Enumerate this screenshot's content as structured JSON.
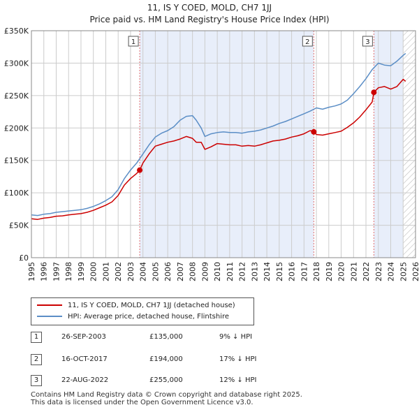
{
  "title_line1": "11, IS Y COED, MOLD, CH7 1JJ",
  "title_line2": "Price paid vs. HM Land Registry's House Price Index (HPI)",
  "legend": {
    "red_label": "11, IS Y COED, MOLD, CH7 1JJ (detached house)",
    "blue_label": "HPI: Average price, detached house, Flintshire"
  },
  "colors": {
    "red": "#cc0000",
    "blue": "#5b8ec6",
    "shade": "#e8eefa",
    "hatch": "#bbbbbb",
    "grid": "#cccccc",
    "marker": "#e07070"
  },
  "sales": [
    {
      "id": "1",
      "date": "26-SEP-2003",
      "price": "£135,000",
      "hpi": "9% ↓ HPI"
    },
    {
      "id": "2",
      "date": "16-OCT-2017",
      "price": "£194,000",
      "hpi": "17% ↓ HPI"
    },
    {
      "id": "3",
      "date": "22-AUG-2022",
      "price": "£255,000",
      "hpi": "12% ↓ HPI"
    }
  ],
  "footer": {
    "line1": "Contains HM Land Registry data © Crown copyright and database right 2025.",
    "line2": "This data is licensed under the Open Government Licence v3.0."
  },
  "chart_data": {
    "type": "line",
    "xlim": [
      1995,
      2026
    ],
    "ylim": [
      0,
      350000
    ],
    "y_ticks": [
      0,
      50000,
      100000,
      150000,
      200000,
      250000,
      300000,
      350000
    ],
    "y_tick_labels": [
      "£0",
      "£50K",
      "£100K",
      "£150K",
      "£200K",
      "£250K",
      "£300K",
      "£350K"
    ],
    "x_ticks": [
      1995,
      1996,
      1997,
      1998,
      1999,
      2000,
      2001,
      2002,
      2003,
      2004,
      2005,
      2006,
      2007,
      2008,
      2009,
      2010,
      2011,
      2012,
      2013,
      2014,
      2015,
      2016,
      2017,
      2018,
      2019,
      2020,
      2021,
      2022,
      2023,
      2024,
      2025,
      2026
    ],
    "x_tick_labels": [
      "1995",
      "1996",
      "1997",
      "1998",
      "1999",
      "2000",
      "2001",
      "2002",
      "2003",
      "2004",
      "2005",
      "2006",
      "2007",
      "2008",
      "2009",
      "2010",
      "2011",
      "2012",
      "2013",
      "2014",
      "2015",
      "2016",
      "2017",
      "2018",
      "2019",
      "2020",
      "2021",
      "2022",
      "2023",
      "2024",
      "2025",
      "2026"
    ],
    "shaded_ranges": [
      [
        2003.74,
        2017.79
      ],
      [
        2022.64,
        2025.0
      ]
    ],
    "hatch_from": 2025.0,
    "series": [
      {
        "name": "11, IS Y COED, MOLD, CH7 1JJ (detached house)",
        "color": "#cc0000",
        "x": [
          1995,
          1995.5,
          1996,
          1996.5,
          1997,
          1997.5,
          1998,
          1998.5,
          1999,
          1999.5,
          2000,
          2000.5,
          2001,
          2001.5,
          2002,
          2002.5,
          2003,
          2003.5,
          2003.74,
          2004,
          2004.5,
          2005,
          2005.5,
          2006,
          2006.5,
          2007,
          2007.5,
          2008,
          2008.3,
          2008.7,
          2009,
          2009.5,
          2010,
          2010.5,
          2011,
          2011.5,
          2012,
          2012.5,
          2013,
          2013.5,
          2014,
          2014.5,
          2015,
          2015.5,
          2016,
          2016.5,
          2017,
          2017.5,
          2017.79,
          2018,
          2018.5,
          2019,
          2019.5,
          2020,
          2020.5,
          2021,
          2021.5,
          2022,
          2022.5,
          2022.64,
          2023,
          2023.5,
          2024,
          2024.5,
          2025,
          2025.2
        ],
        "y": [
          60000,
          59000,
          61000,
          62000,
          64000,
          64500,
          66000,
          67000,
          68000,
          70000,
          73000,
          77000,
          81000,
          86000,
          96000,
          112000,
          122000,
          130000,
          135000,
          146000,
          160000,
          172000,
          175000,
          178000,
          180000,
          183000,
          187000,
          184000,
          178000,
          178000,
          167000,
          171000,
          176000,
          175000,
          174000,
          174000,
          172000,
          173000,
          172000,
          174000,
          177000,
          180000,
          181000,
          183000,
          186000,
          188000,
          191000,
          196000,
          194000,
          190000,
          189000,
          191000,
          193000,
          195000,
          201000,
          208000,
          217000,
          228000,
          240000,
          255000,
          262000,
          264000,
          260000,
          264000,
          275000,
          272000
        ]
      },
      {
        "name": "HPI: Average price, detached house, Flintshire",
        "color": "#5b8ec6",
        "x": [
          1995,
          1995.5,
          1996,
          1996.5,
          1997,
          1997.5,
          1998,
          1998.5,
          1999,
          1999.5,
          2000,
          2000.5,
          2001,
          2001.5,
          2002,
          2002.5,
          2003,
          2003.5,
          2004,
          2004.5,
          2005,
          2005.5,
          2006,
          2006.5,
          2007,
          2007.5,
          2008,
          2008.3,
          2008.7,
          2009,
          2009.5,
          2010,
          2010.5,
          2011,
          2011.5,
          2012,
          2012.5,
          2013,
          2013.5,
          2014,
          2014.5,
          2015,
          2015.5,
          2016,
          2016.5,
          2017,
          2017.5,
          2018,
          2018.5,
          2019,
          2019.5,
          2020,
          2020.5,
          2021,
          2021.5,
          2022,
          2022.5,
          2023,
          2023.5,
          2024,
          2024.5,
          2025,
          2025.2
        ],
        "y": [
          66000,
          65000,
          67000,
          68000,
          70000,
          71000,
          72000,
          73000,
          74000,
          76000,
          79000,
          83000,
          88000,
          94000,
          105000,
          122000,
          135000,
          146000,
          160000,
          174000,
          186000,
          192000,
          196000,
          202000,
          212000,
          218000,
          219000,
          212000,
          200000,
          187000,
          191000,
          193000,
          194000,
          193000,
          193000,
          192000,
          194000,
          195000,
          197000,
          200000,
          203000,
          207000,
          210000,
          214000,
          218000,
          222000,
          226000,
          231000,
          229000,
          232000,
          234000,
          237000,
          243000,
          253000,
          264000,
          276000,
          290000,
          300000,
          297000,
          296000,
          303000,
          312000,
          315000
        ]
      }
    ],
    "markers": [
      {
        "label": "1",
        "x": 2003.74,
        "y": 135000
      },
      {
        "label": "2",
        "x": 2017.79,
        "y": 194000
      },
      {
        "label": "3",
        "x": 2022.64,
        "y": 255000
      }
    ]
  }
}
